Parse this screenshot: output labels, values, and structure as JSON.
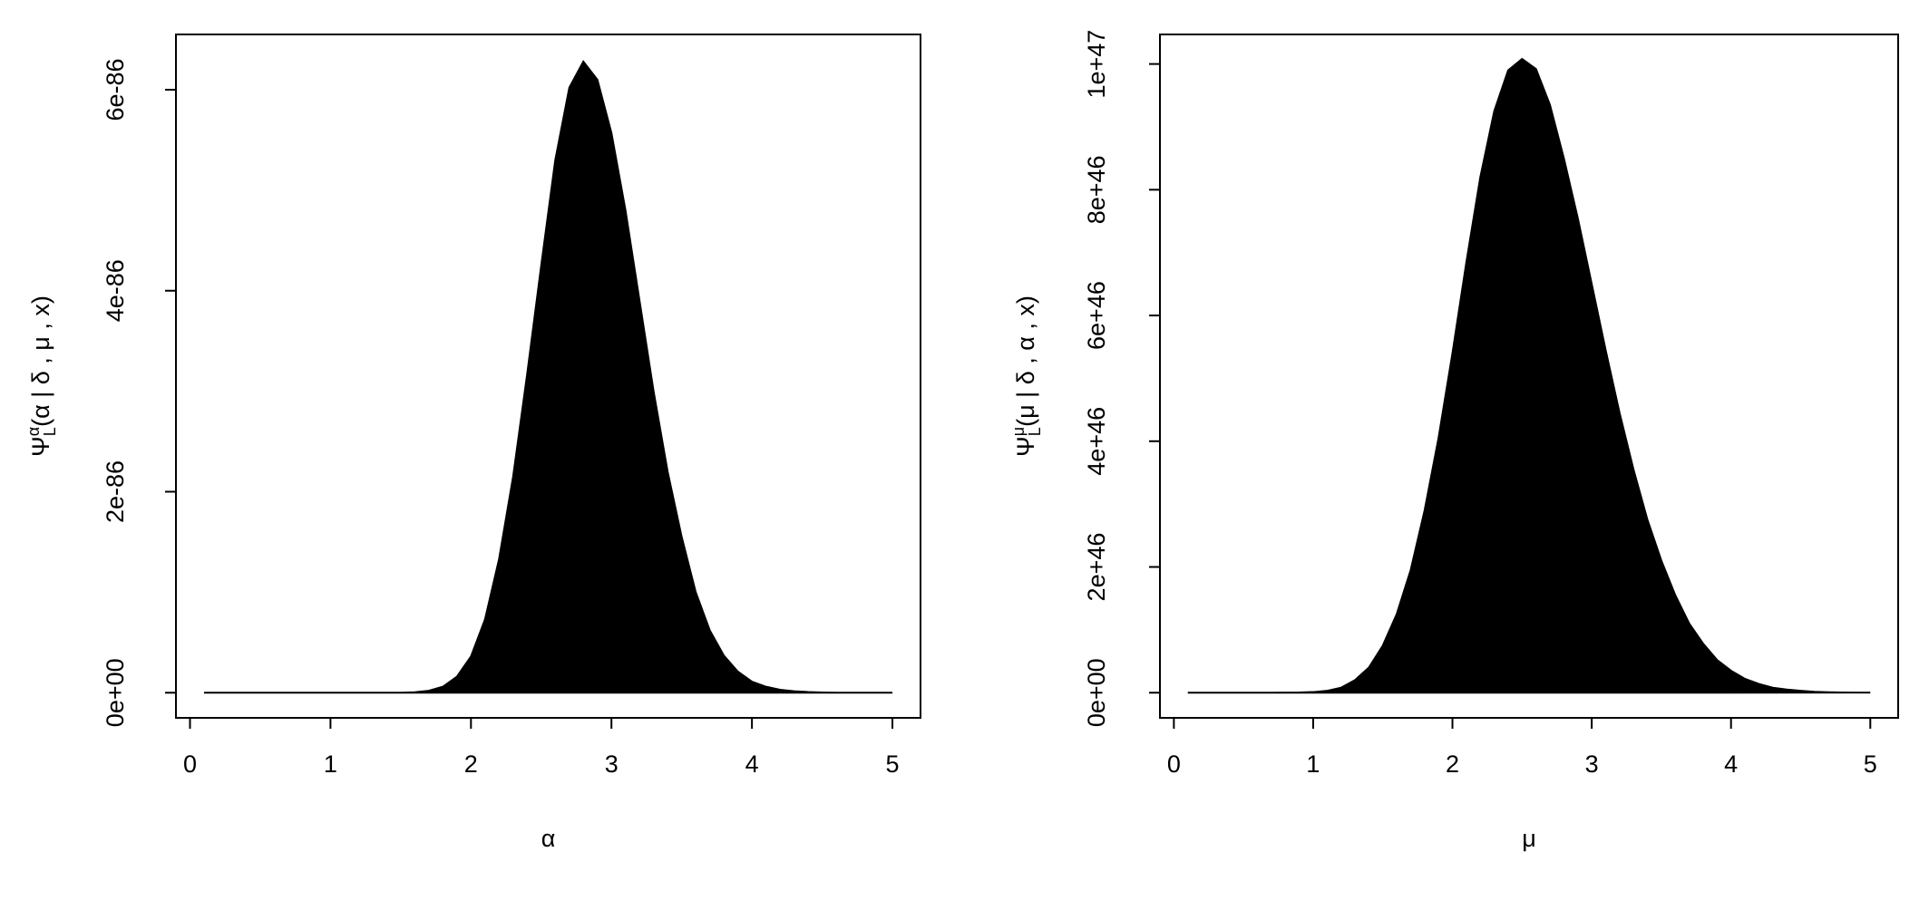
{
  "chart_data": [
    {
      "type": "area",
      "color": "#000000",
      "xlabel": "α",
      "ylabel": {
        "symbol": "Ψ",
        "sub": "L",
        "sup": "α",
        "args": "(α | δ , μ , x)"
      },
      "x": [
        0.1,
        0.2,
        0.3,
        0.4,
        0.5,
        0.6,
        0.7,
        0.8,
        0.9,
        1.0,
        1.1,
        1.2,
        1.3,
        1.4,
        1.5,
        1.6,
        1.7,
        1.8,
        1.9,
        2.0,
        2.1,
        2.2,
        2.3,
        2.4,
        2.5,
        2.6,
        2.7,
        2.8,
        2.9,
        3.0,
        3.1,
        3.2,
        3.3,
        3.4,
        3.5,
        3.6,
        3.7,
        3.8,
        3.9,
        4.0,
        4.1,
        4.2,
        4.3,
        4.4,
        4.5,
        4.6,
        4.7,
        4.8,
        4.9,
        5.0
      ],
      "values": [
        0,
        0,
        0,
        0,
        0,
        0,
        0,
        0,
        0,
        0,
        0,
        0,
        0,
        0,
        0,
        5e-89,
        2e-88,
        6e-88,
        1.6e-87,
        3.6e-87,
        7.3e-87,
        1.33e-86,
        2.15e-86,
        3.17e-86,
        4.25e-86,
        5.3e-86,
        6.02e-86,
        6.28e-86,
        6.1e-86,
        5.57e-86,
        4.8e-86,
        3.9e-86,
        3e-86,
        2.2e-86,
        1.55e-86,
        1e-86,
        6.2e-87,
        3.7e-87,
        2.1e-87,
        1.1e-87,
        6e-88,
        3e-88,
        1.5e-88,
        7e-89,
        3e-89,
        0,
        0,
        0,
        0,
        0
      ],
      "xlim": [
        -0.1,
        5.2
      ],
      "xticks": [
        0,
        1,
        2,
        3,
        4,
        5
      ],
      "ylim": [
        -2.5e-87,
        6.55e-86
      ],
      "yticks": [
        {
          "value": 0,
          "label": "0e+00"
        },
        2e-86,
        4e-86,
        6e-86
      ]
    },
    {
      "type": "area",
      "color": "#000000",
      "xlabel": "μ",
      "ylabel": {
        "symbol": "Ψ",
        "sub": "L",
        "sup": "μ",
        "args": "(μ | δ , α , x)"
      },
      "x": [
        0.1,
        0.2,
        0.3,
        0.4,
        0.5,
        0.6,
        0.7,
        0.8,
        0.9,
        1.0,
        1.1,
        1.2,
        1.3,
        1.4,
        1.5,
        1.6,
        1.7,
        1.8,
        1.9,
        2.0,
        2.1,
        2.2,
        2.3,
        2.4,
        2.5,
        2.6,
        2.7,
        2.8,
        2.9,
        3.0,
        3.1,
        3.2,
        3.3,
        3.4,
        3.5,
        3.6,
        3.7,
        3.8,
        3.9,
        4.0,
        4.1,
        4.2,
        4.3,
        4.4,
        4.5,
        4.6,
        4.7,
        4.8,
        4.9,
        5.0
      ],
      "values": [
        0,
        0,
        0,
        0,
        0,
        0,
        0,
        1e+43,
        3e+43,
        1e+44,
        3e+44,
        8e+44,
        2e+45,
        4e+45,
        7.5e+45,
        1.25e+46,
        1.95e+46,
        2.9e+46,
        4.05e+46,
        5.4e+46,
        6.85e+46,
        8.2e+46,
        9.25e+46,
        9.9e+46,
        1.008e+47,
        9.92e+46,
        9.35e+46,
        8.5e+46,
        7.55e+46,
        6.5e+46,
        5.45e+46,
        4.45e+46,
        3.55e+46,
        2.75e+46,
        2.1e+46,
        1.55e+46,
        1.1e+46,
        7.8e+45,
        5.2e+45,
        3.5e+45,
        2.2e+45,
        1.4e+45,
        8e+44,
        5e+44,
        3e+44,
        1.5e+44,
        8e+43,
        4e+43,
        2e+43,
        1e+43
      ],
      "xlim": [
        -0.1,
        5.2
      ],
      "xticks": [
        0,
        1,
        2,
        3,
        4,
        5
      ],
      "ylim": [
        -4e+45,
        1.047e+47
      ],
      "yticks": [
        {
          "value": 0,
          "label": "0e+00"
        },
        2e+46,
        4e+46,
        6e+46,
        8e+46,
        1e+47
      ]
    }
  ]
}
